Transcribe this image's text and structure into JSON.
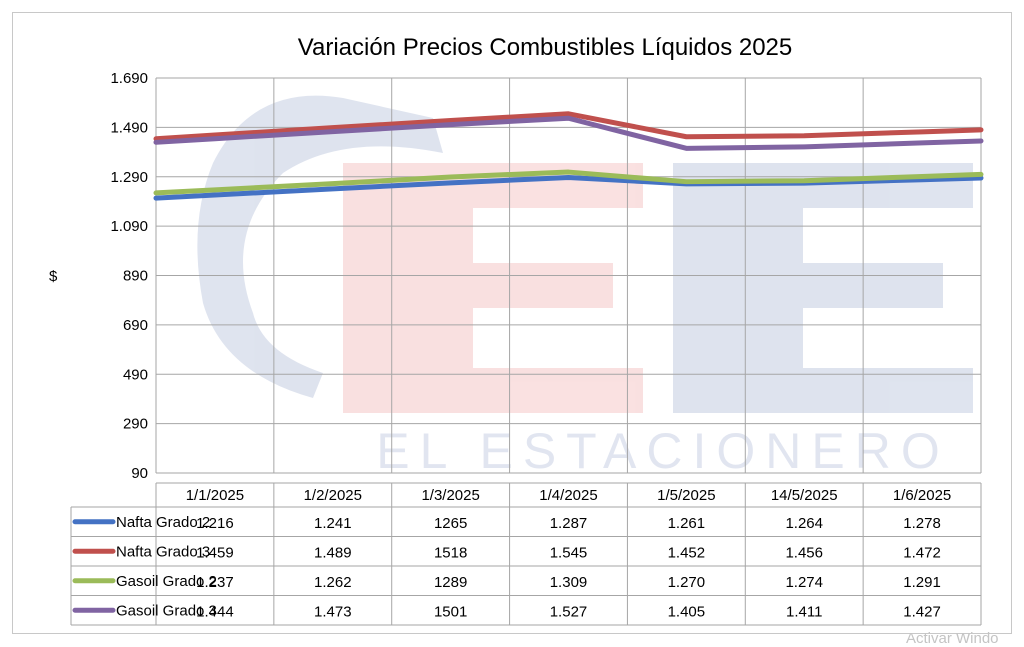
{
  "window_notice": "Activar Windo",
  "chart_data": {
    "type": "line",
    "title": "Variación Precios Combustibles Líquidos 2025",
    "ylabel": "$",
    "xlabel": "",
    "ylim": [
      90,
      1690
    ],
    "yticks": [
      "1.690",
      "1.490",
      "1.290",
      "1.090",
      "890",
      "690",
      "490",
      "290",
      "90"
    ],
    "ytick_values": [
      1690,
      1490,
      1290,
      1090,
      890,
      690,
      490,
      290,
      90
    ],
    "categories": [
      "1/1/2025",
      "1/2/2025",
      "1/3/2025",
      "1/4/2025",
      "1/5/2025",
      "14/5/2025",
      "1/6/2025"
    ],
    "grid": true,
    "legend": "data-table",
    "watermark": "EL ESTACIONERO",
    "series": [
      {
        "name": "Nafta Grado 2",
        "color": "#4472c4",
        "values": [
          1216,
          1241,
          1265,
          1287,
          1261,
          1264,
          1278
        ],
        "labels": [
          "1.216",
          "1.241",
          "1265",
          "1.287",
          "1.261",
          "1.264",
          "1.278"
        ]
      },
      {
        "name": "Nafta Grado 3",
        "color": "#c0504d",
        "values": [
          1459,
          1489,
          1518,
          1545,
          1452,
          1456,
          1472
        ],
        "labels": [
          "1.459",
          "1.489",
          "1518",
          "1.545",
          "1.452",
          "1.456",
          "1.472"
        ]
      },
      {
        "name": "Gasoil Grado 2",
        "color": "#9bbb59",
        "values": [
          1237,
          1262,
          1289,
          1309,
          1270,
          1274,
          1291
        ],
        "labels": [
          "1.237",
          "1.262",
          "1289",
          "1.309",
          "1.270",
          "1.274",
          "1.291"
        ]
      },
      {
        "name": "Gasoil Grado 3",
        "color": "#8064a2",
        "values": [
          1444,
          1473,
          1501,
          1527,
          1405,
          1411,
          1427
        ],
        "labels": [
          "1.444",
          "1.473",
          "1501",
          "1.527",
          "1.405",
          "1.411",
          "1.427"
        ]
      }
    ]
  }
}
